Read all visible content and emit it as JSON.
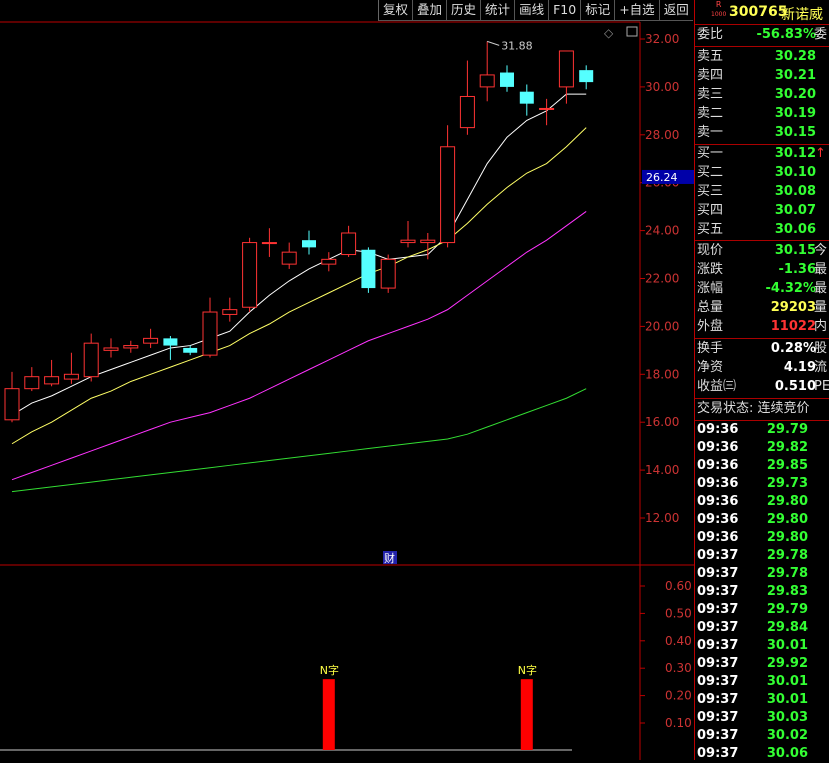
{
  "toolbar": {
    "items": [
      "复权",
      "叠加",
      "历史",
      "统计",
      "画线",
      "F10",
      "标记",
      "+自选",
      "返回"
    ]
  },
  "header": {
    "badge_top": "R",
    "badge_bottom": "1000",
    "code": "300765",
    "name": "新诺威"
  },
  "ratio": {
    "label": "委比",
    "value": "-56.83%",
    "cut": "委"
  },
  "asks": [
    {
      "label": "卖五",
      "price": "30.28"
    },
    {
      "label": "卖四",
      "price": "30.21"
    },
    {
      "label": "卖三",
      "price": "30.20"
    },
    {
      "label": "卖二",
      "price": "30.19"
    },
    {
      "label": "卖一",
      "price": "30.15"
    }
  ],
  "bids": [
    {
      "label": "买一",
      "price": "30.12",
      "mark": "↑"
    },
    {
      "label": "买二",
      "price": "30.10"
    },
    {
      "label": "买三",
      "price": "30.08"
    },
    {
      "label": "买四",
      "price": "30.07"
    },
    {
      "label": "买五",
      "price": "30.06"
    }
  ],
  "stats1": [
    {
      "label": "现价",
      "value": "30.15",
      "cut": "今"
    },
    {
      "label": "涨跌",
      "value": "-1.36",
      "cut": "最"
    },
    {
      "label": "涨幅",
      "value": "-4.32%",
      "cut": "最"
    },
    {
      "label": "总量",
      "value": "29203",
      "cut": "量"
    },
    {
      "label": "外盘",
      "value": "11022",
      "cut": "内"
    }
  ],
  "stats2": [
    {
      "label": "换手",
      "value": "0.28%",
      "cut": "股"
    },
    {
      "label": "净资",
      "value": "4.19",
      "cut": "流"
    },
    {
      "label": "收益㈢",
      "value": "0.510",
      "cut": "PE"
    }
  ],
  "trade_status": "交易状态: 连续竞价",
  "ticks": [
    {
      "time": "09:36",
      "price": "29.79"
    },
    {
      "time": "09:36",
      "price": "29.82"
    },
    {
      "time": "09:36",
      "price": "29.85"
    },
    {
      "time": "09:36",
      "price": "29.73"
    },
    {
      "time": "09:36",
      "price": "29.80"
    },
    {
      "time": "09:36",
      "price": "29.80"
    },
    {
      "time": "09:36",
      "price": "29.80"
    },
    {
      "time": "09:37",
      "price": "29.78"
    },
    {
      "time": "09:37",
      "price": "29.78"
    },
    {
      "time": "09:37",
      "price": "29.83"
    },
    {
      "time": "09:37",
      "price": "29.79"
    },
    {
      "time": "09:37",
      "price": "29.84"
    },
    {
      "time": "09:37",
      "price": "30.01"
    },
    {
      "time": "09:37",
      "price": "29.92"
    },
    {
      "time": "09:37",
      "price": "30.01"
    },
    {
      "time": "09:37",
      "price": "30.01"
    },
    {
      "time": "09:37",
      "price": "30.03"
    },
    {
      "time": "09:37",
      "price": "30.02"
    },
    {
      "time": "09:37",
      "price": "30.06"
    }
  ],
  "chart_data": {
    "type": "candlestick",
    "price_axis": {
      "range": [
        11.0,
        32.6
      ],
      "ticks": [
        "32.00",
        "30.00",
        "28.00",
        "26.00",
        "24.00",
        "22.00",
        "20.00",
        "18.00",
        "16.00",
        "14.00",
        "12.00"
      ]
    },
    "indicator_axis": {
      "range": [
        0,
        0.65
      ],
      "ticks": [
        "0.60",
        "0.50",
        "0.40",
        "0.30",
        "0.20",
        "0.10"
      ]
    },
    "current_price_label": "26.24",
    "current_price_value": 26.24,
    "high_label": "31.88",
    "finance_marker": "财",
    "candles": [
      {
        "o": 16.1,
        "c": 17.4,
        "h": 18.1,
        "l": 16.0
      },
      {
        "o": 17.4,
        "c": 17.9,
        "h": 18.3,
        "l": 17.3
      },
      {
        "o": 17.6,
        "c": 17.9,
        "h": 18.6,
        "l": 17.5
      },
      {
        "o": 17.8,
        "c": 18.0,
        "h": 18.9,
        "l": 17.6
      },
      {
        "o": 17.9,
        "c": 19.3,
        "h": 19.7,
        "l": 17.7
      },
      {
        "o": 19.0,
        "c": 19.1,
        "h": 19.5,
        "l": 18.7
      },
      {
        "o": 19.1,
        "c": 19.2,
        "h": 19.4,
        "l": 18.9
      },
      {
        "o": 19.3,
        "c": 19.5,
        "h": 19.9,
        "l": 19.1
      },
      {
        "o": 19.5,
        "c": 19.2,
        "h": 19.6,
        "l": 18.6
      },
      {
        "o": 19.1,
        "c": 18.9,
        "h": 19.2,
        "l": 18.8
      },
      {
        "o": 18.8,
        "c": 20.6,
        "h": 21.2,
        "l": 18.7
      },
      {
        "o": 20.5,
        "c": 20.7,
        "h": 21.2,
        "l": 20.2
      },
      {
        "o": 20.8,
        "c": 23.5,
        "h": 23.7,
        "l": 20.6
      },
      {
        "o": 23.5,
        "c": 23.5,
        "h": 24.1,
        "l": 22.9
      },
      {
        "o": 22.6,
        "c": 23.1,
        "h": 23.5,
        "l": 22.4
      },
      {
        "o": 23.6,
        "c": 23.3,
        "h": 24.0,
        "l": 23.0
      },
      {
        "o": 22.6,
        "c": 22.8,
        "h": 23.1,
        "l": 22.3
      },
      {
        "o": 23.0,
        "c": 23.9,
        "h": 24.2,
        "l": 22.9
      },
      {
        "o": 23.2,
        "c": 21.6,
        "h": 23.3,
        "l": 21.4
      },
      {
        "o": 21.6,
        "c": 22.8,
        "h": 23.0,
        "l": 21.4
      },
      {
        "o": 23.5,
        "c": 23.6,
        "h": 24.4,
        "l": 23.3
      },
      {
        "o": 23.5,
        "c": 23.6,
        "h": 23.9,
        "l": 22.8
      },
      {
        "o": 23.5,
        "c": 27.5,
        "h": 28.4,
        "l": 23.3
      },
      {
        "o": 28.3,
        "c": 29.6,
        "h": 31.1,
        "l": 28.0
      },
      {
        "o": 30.0,
        "c": 30.5,
        "h": 31.9,
        "l": 29.4
      },
      {
        "o": 30.6,
        "c": 30.0,
        "h": 30.9,
        "l": 29.8
      },
      {
        "o": 29.8,
        "c": 29.3,
        "h": 30.1,
        "l": 28.8
      },
      {
        "o": 29.1,
        "c": 29.1,
        "h": 29.5,
        "l": 28.4
      },
      {
        "o": 30.0,
        "c": 31.5,
        "h": 31.5,
        "l": 29.3
      },
      {
        "o": 30.7,
        "c": 30.2,
        "h": 30.9,
        "l": 29.9
      }
    ],
    "ma_lines": [
      {
        "color": "#ffffff",
        "values": [
          16.3,
          16.8,
          17.1,
          17.5,
          17.9,
          18.2,
          18.5,
          18.8,
          19.1,
          19.2,
          19.5,
          19.8,
          20.6,
          21.3,
          21.9,
          22.4,
          22.8,
          23.2,
          23.1,
          22.8,
          22.9,
          23.0,
          23.8,
          25.3,
          26.8,
          27.9,
          28.6,
          29.0,
          29.7,
          29.7
        ]
      },
      {
        "color": "#ffff66",
        "values": [
          15.1,
          15.6,
          16.0,
          16.5,
          17.0,
          17.3,
          17.7,
          18.0,
          18.3,
          18.6,
          18.9,
          19.2,
          19.7,
          20.1,
          20.6,
          21.0,
          21.4,
          21.8,
          22.2,
          22.5,
          22.9,
          23.2,
          23.6,
          24.3,
          25.1,
          25.8,
          26.4,
          26.8,
          27.5,
          28.3
        ]
      },
      {
        "color": "#ff33ff",
        "values": [
          13.6,
          13.9,
          14.2,
          14.5,
          14.8,
          15.1,
          15.4,
          15.7,
          16.0,
          16.2,
          16.4,
          16.7,
          17.0,
          17.4,
          17.8,
          18.2,
          18.6,
          19.0,
          19.4,
          19.7,
          20.0,
          20.3,
          20.7,
          21.3,
          21.9,
          22.5,
          23.1,
          23.6,
          24.2,
          24.8
        ]
      },
      {
        "color": "#33dd33",
        "values": [
          13.1,
          13.2,
          13.3,
          13.4,
          13.5,
          13.6,
          13.7,
          13.8,
          13.9,
          14.0,
          14.1,
          14.2,
          14.3,
          14.4,
          14.5,
          14.6,
          14.7,
          14.8,
          14.9,
          15.0,
          15.1,
          15.2,
          15.3,
          15.5,
          15.8,
          16.1,
          16.4,
          16.7,
          17.0,
          17.4
        ]
      }
    ],
    "signals": [
      {
        "index": 16,
        "label": "N字",
        "value": 0.26
      },
      {
        "index": 26,
        "label": "N字",
        "value": 0.26
      }
    ]
  }
}
